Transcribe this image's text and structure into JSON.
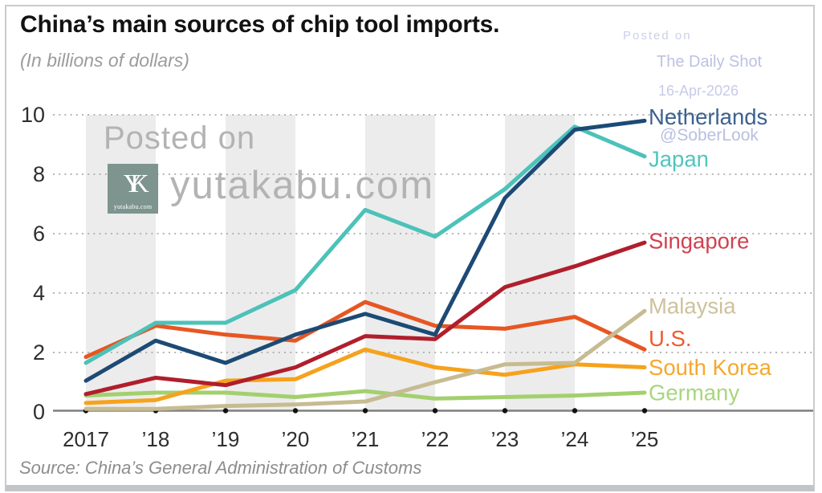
{
  "header": {
    "title": "China’s main sources of chip tool imports.",
    "subtitle": "(In billions of dollars)"
  },
  "footer": {
    "source": "Source: China’s General Administration of Customs"
  },
  "watermark_center": {
    "posted_on": "Posted on",
    "site": "yutakabu.com",
    "logo_monogram": "YK",
    "logo_caption": "yutakabu.com",
    "logo_bg_color": "#7e948f",
    "text_color": "#b3b3b3"
  },
  "watermark_top_right": {
    "posted_on": "Posted on",
    "publication": "The Daily Shot",
    "date": "16-Apr-2026",
    "handle": "@SoberLook",
    "text_color": "#bfc5e3"
  },
  "chart_data": {
    "type": "line",
    "title": "China’s main sources of chip tool imports",
    "unit": "billions of dollars",
    "x_labels": [
      "2017",
      "’18",
      "’19",
      "’20",
      "’21",
      "’22",
      "’23",
      "’24",
      "’25"
    ],
    "y_ticks": [
      0,
      2,
      4,
      6,
      8,
      10
    ],
    "ylim": [
      0,
      10
    ],
    "grid": "dotted horizontal gridlines at even values",
    "plot_background": "alternating light-gray vertical bands",
    "shaded_intervals_idx": [
      [
        0,
        1
      ],
      [
        2,
        3
      ],
      [
        4,
        5
      ],
      [
        6,
        7
      ]
    ],
    "band_color": "#ececec",
    "gridline_color": "#b5b5b5",
    "axis_color": "#7f7f7f",
    "tick_dot_color": "#111111",
    "axis_text_color": "#2e2e2e",
    "legend_position": "right-edge direct labels",
    "series": [
      {
        "name": "Netherlands",
        "line_color": "#1d4a75",
        "label_color": "#3c6191",
        "values": [
          1.05,
          2.4,
          1.65,
          2.6,
          3.3,
          2.6,
          7.2,
          9.5,
          9.8
        ]
      },
      {
        "name": "Japan",
        "line_color": "#4cc2b9",
        "label_color": "#4fc6bd",
        "values": [
          1.65,
          3.0,
          3.0,
          4.1,
          6.8,
          5.9,
          7.5,
          9.6,
          8.6
        ]
      },
      {
        "name": "Singapore",
        "line_color": "#b01e2c",
        "label_color": "#d04250",
        "values": [
          0.6,
          1.15,
          0.9,
          1.5,
          2.55,
          2.45,
          4.2,
          4.9,
          5.7
        ]
      },
      {
        "name": "Malaysia",
        "line_color": "#c7bb92",
        "label_color": "#cdc29c",
        "values": [
          0.1,
          0.1,
          0.2,
          0.25,
          0.35,
          1.0,
          1.6,
          1.65,
          3.4
        ]
      },
      {
        "name": "U.S.",
        "line_color": "#e65723",
        "label_color": "#ee5b2e",
        "values": [
          1.85,
          2.9,
          2.6,
          2.4,
          3.7,
          2.9,
          2.8,
          3.2,
          2.1
        ]
      },
      {
        "name": "South Korea",
        "line_color": "#f6a21c",
        "label_color": "#f6a82c",
        "values": [
          0.3,
          0.4,
          1.05,
          1.1,
          2.1,
          1.5,
          1.25,
          1.6,
          1.5
        ]
      },
      {
        "name": "Germany",
        "line_color": "#a3d06f",
        "label_color": "#a8d67e",
        "values": [
          0.55,
          0.65,
          0.65,
          0.5,
          0.7,
          0.45,
          0.5,
          0.55,
          0.65
        ]
      }
    ]
  }
}
